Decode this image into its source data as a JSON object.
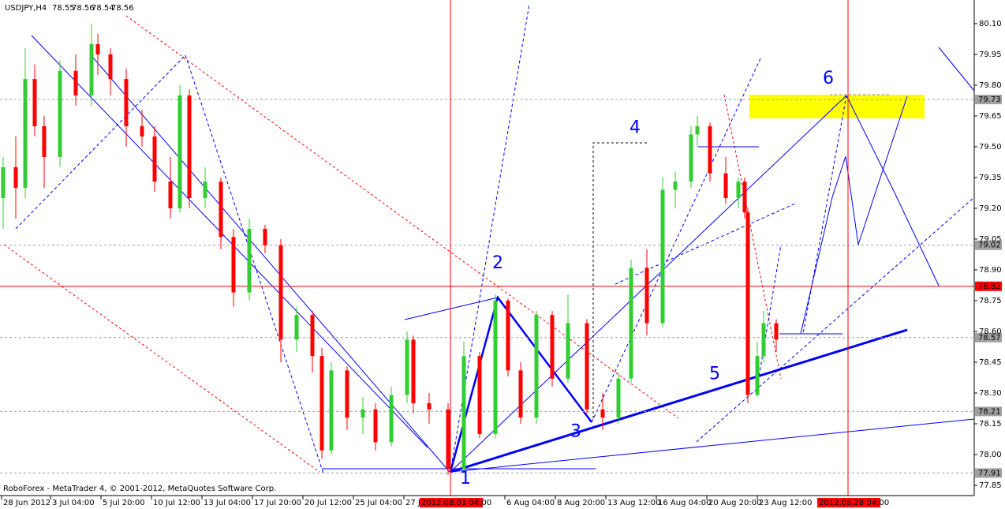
{
  "chart_data": {
    "type": "candlestick",
    "title": "USDJPY,H4",
    "header_values": [
      78.55,
      78.56,
      78.54,
      78.56
    ],
    "footer": "RoboForex - MetaTrader 4, © 2001-2012, MetaQuotes Software Corp.",
    "up_color": "#32cd32",
    "down_color": "#ff0000",
    "x": [
      1,
      5,
      8,
      11,
      14,
      19,
      24,
      29,
      31,
      35,
      40,
      45,
      49,
      54,
      57,
      60,
      65,
      70,
      74,
      79,
      84,
      89,
      94,
      99,
      102,
      105,
      110,
      115,
      119,
      124,
      129,
      131,
      136,
      142,
      147,
      152,
      157,
      161,
      165,
      170,
      175,
      180,
      186,
      191,
      196,
      200,
      205,
      210,
      214,
      219,
      221,
      225,
      230,
      234,
      236,
      237,
      240,
      242,
      246
    ],
    "open": [
      79.25,
      79.4,
      79.3,
      79.83,
      79.6,
      79.45,
      79.87,
      79.75,
      80.0,
      79.95,
      79.83,
      79.6,
      79.55,
      79.33,
      79.2,
      79.75,
      79.25,
      79.33,
      79.06,
      78.79,
      79.1,
      79.02,
      78.56,
      78.68,
      78.48,
      78.02,
      78.41,
      78.18,
      78.22,
      78.06,
      78.29,
      78.56,
      78.25,
      78.22,
      77.93,
      78.48,
      78.1,
      78.75,
      78.41,
      78.18,
      78.68,
      78.37,
      78.64,
      78.22,
      78.18,
      78.37,
      78.91,
      78.64,
      79.29,
      79.33,
      79.56,
      79.6,
      79.37,
      79.25,
      79.33,
      79.18,
      78.29,
      78.48,
      78.64
    ],
    "high": [
      79.45,
      79.55,
      79.98,
      79.9,
      79.65,
      79.92,
      79.95,
      80.1,
      80.05,
      79.98,
      79.88,
      79.68,
      79.6,
      79.45,
      79.8,
      79.78,
      79.4,
      79.35,
      79.1,
      79.15,
      79.12,
      79.05,
      78.72,
      78.7,
      78.52,
      78.45,
      78.43,
      78.28,
      78.25,
      78.33,
      78.6,
      78.58,
      78.3,
      78.25,
      78.55,
      78.5,
      78.78,
      78.76,
      78.45,
      78.7,
      78.7,
      78.78,
      78.66,
      78.3,
      78.4,
      78.95,
      79.0,
      79.35,
      79.38,
      79.6,
      79.65,
      79.62,
      79.45,
      79.35,
      79.35,
      79.2,
      78.55,
      78.7,
      78.66
    ],
    "low": [
      79.1,
      79.15,
      79.25,
      79.55,
      79.3,
      79.4,
      79.7,
      79.7,
      79.85,
      79.75,
      79.5,
      79.5,
      79.28,
      79.15,
      79.18,
      79.2,
      79.2,
      79.0,
      78.72,
      78.75,
      78.98,
      78.45,
      78.5,
      78.4,
      77.98,
      78.0,
      78.12,
      78.1,
      78.02,
      78.04,
      78.25,
      78.2,
      78.15,
      77.9,
      77.92,
      78.08,
      78.08,
      78.38,
      78.15,
      78.15,
      78.33,
      78.35,
      78.2,
      78.12,
      78.15,
      78.35,
      78.58,
      78.62,
      79.2,
      79.3,
      79.5,
      79.33,
      79.22,
      79.2,
      79.15,
      78.25,
      78.28,
      78.45,
      78.5
    ],
    "close": [
      79.4,
      79.3,
      79.83,
      79.6,
      79.45,
      79.87,
      79.75,
      80.0,
      79.95,
      79.83,
      79.6,
      79.55,
      79.33,
      79.2,
      79.75,
      79.25,
      79.33,
      79.06,
      78.79,
      79.1,
      79.02,
      78.56,
      78.68,
      78.48,
      78.02,
      78.41,
      78.18,
      78.22,
      78.06,
      78.29,
      78.56,
      78.25,
      78.22,
      77.93,
      78.48,
      78.1,
      78.75,
      78.41,
      78.18,
      78.68,
      78.37,
      78.64,
      78.22,
      78.18,
      78.37,
      78.91,
      78.64,
      79.29,
      79.33,
      79.56,
      79.6,
      79.37,
      79.25,
      79.33,
      79.18,
      78.29,
      78.48,
      78.64,
      78.56
    ],
    "xlim": [
      0,
      309
    ],
    "ylim": [
      77.8,
      80.215
    ],
    "xticks": [
      {
        "value": 0.5,
        "label": "28 Jun 2012"
      },
      {
        "value": 16,
        "label": "3 Jul 04:00"
      },
      {
        "value": 32,
        "label": "5 Jul 20:00"
      },
      {
        "value": 48,
        "label": "10 Jul 12:00"
      },
      {
        "value": 64,
        "label": "13 Jul 04:00"
      },
      {
        "value": 80,
        "label": "17 Jul 20:00"
      },
      {
        "value": 96,
        "label": "20 Jul 12:00"
      },
      {
        "value": 112,
        "label": "25 Jul 04:00"
      },
      {
        "value": 128,
        "label": "27 J"
      },
      {
        "value": 160,
        "label": "6 Aug 04:00"
      },
      {
        "value": 176,
        "label": "8 Aug 20:00"
      },
      {
        "value": 192,
        "label": "13 Aug 12:00"
      },
      {
        "value": 208,
        "label": "16 Aug 04:00"
      },
      {
        "value": 224,
        "label": "20 Aug 20:00"
      },
      {
        "value": 240,
        "label": "23 Aug 12:00"
      }
    ],
    "yticks": [
      {
        "value": 80.1,
        "label": "80.10"
      },
      79.95,
      {
        "value": 79.8,
        "label": "79.80"
      },
      79.65,
      {
        "value": 79.5,
        "label": "79.50"
      },
      79.35,
      {
        "value": 79.2,
        "label": "79.20"
      },
      79.05,
      {
        "value": 78.9,
        "label": "78.90"
      },
      78.75,
      {
        "value": 78.6,
        "label": "78.60"
      },
      78.45,
      {
        "value": 78.3,
        "label": "78.30"
      },
      78.15,
      {
        "value": 78.0,
        "label": "78.00"
      },
      77.85
    ],
    "levels": [
      {
        "value": 79.73,
        "color": "#a0a0a0"
      },
      {
        "value": 79.02,
        "color": "#a0a0a0"
      },
      {
        "value": 78.82,
        "color": "#ff0000"
      },
      {
        "value": 78.57,
        "color": "#a0a0a0"
      },
      {
        "value": 78.21,
        "color": "#a0a0a0"
      },
      {
        "value": 77.91,
        "color": "#a0a0a0"
      }
    ],
    "vlines": [
      {
        "value": 142.75,
        "label": "2012.08.01 04:00"
      },
      {
        "value": 268.75,
        "label": "2012.08.28 04:00"
      }
    ],
    "annotations": [
      {
        "text": "1",
        "x": 147.5,
        "y": 77.88
      },
      {
        "text": "2",
        "x": 157.75,
        "y": 78.93
      },
      {
        "text": "3",
        "x": 182.5,
        "y": 78.11
      },
      {
        "text": "4",
        "x": 201.25,
        "y": 79.59
      },
      {
        "text": "5",
        "x": 226.5,
        "y": 78.39
      },
      {
        "text": "6",
        "x": 262.5,
        "y": 79.83
      }
    ]
  }
}
